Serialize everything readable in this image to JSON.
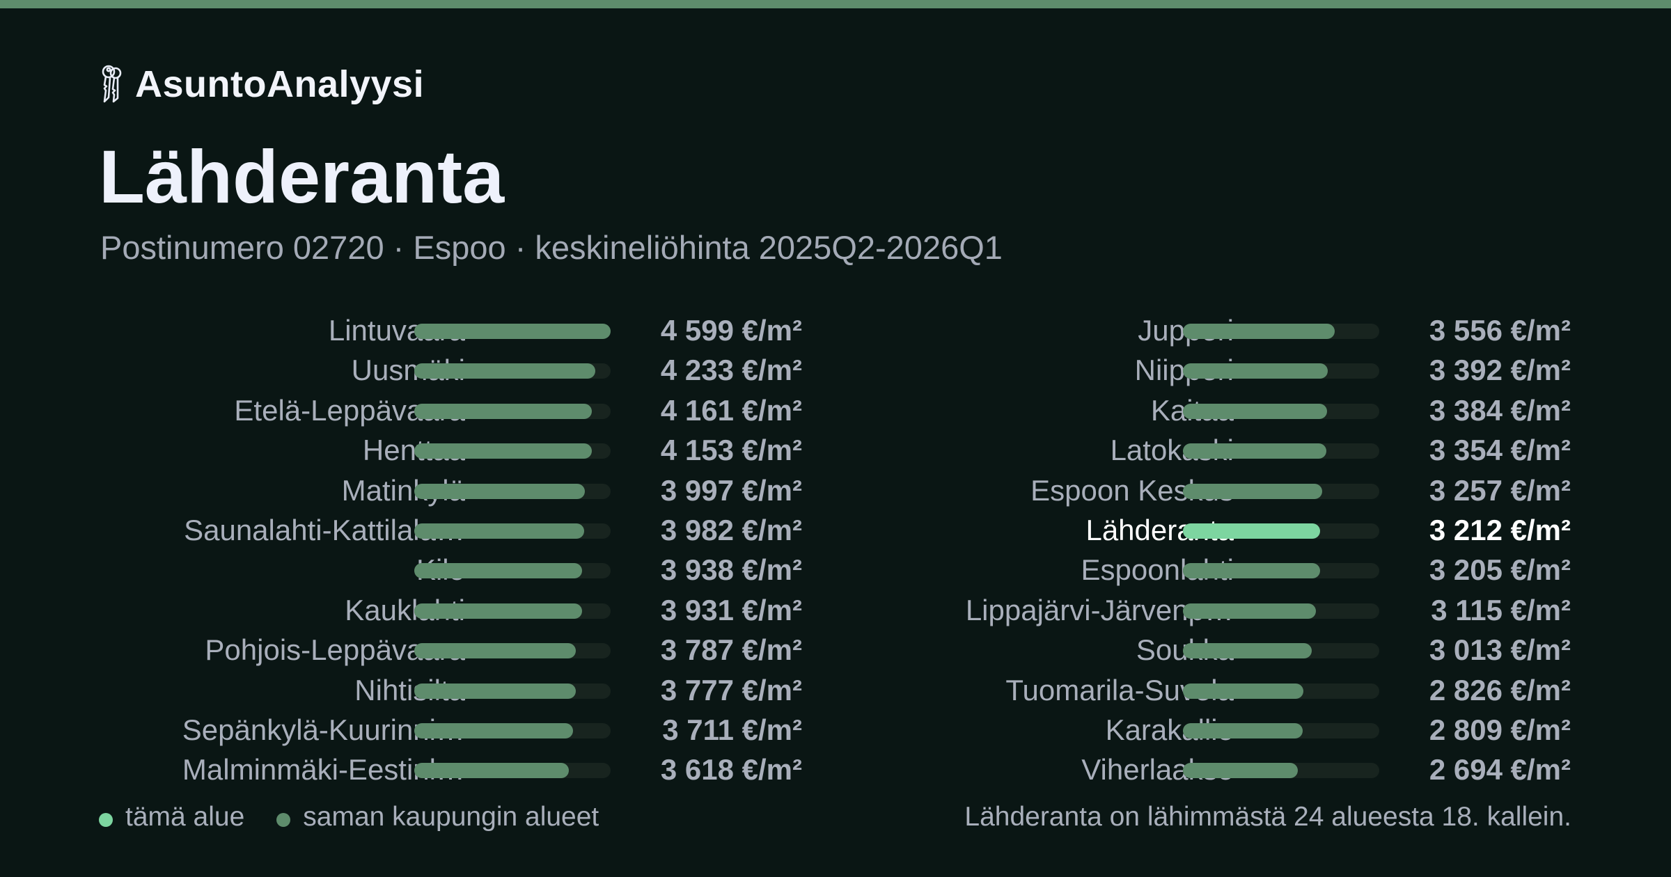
{
  "brand": {
    "name": "AsuntoAnalyysi",
    "icon": "keys-icon"
  },
  "header": {
    "title": "Lähderanta",
    "subtitle": "Postinumero 02720 · Espoo · keskineliöhinta 2025Q2-2026Q1"
  },
  "colors": {
    "accent": "#7dd5a0",
    "bar": "#5e8c6c",
    "track": "#18241f",
    "background": "#0a1614"
  },
  "max_price": 4599,
  "areas_left": [
    {
      "name": "Lintuvaara",
      "price": "4 599 €/m²",
      "value": 4599
    },
    {
      "name": "Uusmäki",
      "price": "4 233 €/m²",
      "value": 4233
    },
    {
      "name": "Etelä-Leppävaara",
      "price": "4 161 €/m²",
      "value": 4161
    },
    {
      "name": "Henttaa",
      "price": "4 153 €/m²",
      "value": 4153
    },
    {
      "name": "Matinkylä",
      "price": "3 997 €/m²",
      "value": 3997
    },
    {
      "name": "Saunalahti-Kattilala…",
      "price": "3 982 €/m²",
      "value": 3982
    },
    {
      "name": "Kilo",
      "price": "3 938 €/m²",
      "value": 3938
    },
    {
      "name": "Kauklahti",
      "price": "3 931 €/m²",
      "value": 3931
    },
    {
      "name": "Pohjois-Leppävaara",
      "price": "3 787 €/m²",
      "value": 3787
    },
    {
      "name": "Nihtisilta",
      "price": "3 777 €/m²",
      "value": 3777
    },
    {
      "name": "Sepänkylä-Kuurinni…",
      "price": "3 711 €/m²",
      "value": 3711
    },
    {
      "name": "Malminmäki-Eestinl…",
      "price": "3 618 €/m²",
      "value": 3618
    }
  ],
  "areas_right": [
    {
      "name": "Jupperi",
      "price": "3 556 €/m²",
      "value": 3556
    },
    {
      "name": "Niipperi",
      "price": "3 392 €/m²",
      "value": 3392
    },
    {
      "name": "Kaitaa",
      "price": "3 384 €/m²",
      "value": 3384
    },
    {
      "name": "Latokaski",
      "price": "3 354 €/m²",
      "value": 3354
    },
    {
      "name": "Espoon Keskus",
      "price": "3 257 €/m²",
      "value": 3257
    },
    {
      "name": "Lähderanta",
      "price": "3 212 €/m²",
      "value": 3212,
      "current": true
    },
    {
      "name": "Espoonlahti",
      "price": "3 205 €/m²",
      "value": 3205
    },
    {
      "name": "Lippajärvi-Järvenp…",
      "price": "3 115 €/m²",
      "value": 3115
    },
    {
      "name": "Soukka",
      "price": "3 013 €/m²",
      "value": 3013
    },
    {
      "name": "Tuomarila-Suvela",
      "price": "2 826 €/m²",
      "value": 2826
    },
    {
      "name": "Karakallio",
      "price": "2 809 €/m²",
      "value": 2809
    },
    {
      "name": "Viherlaakso",
      "price": "2 694 €/m²",
      "value": 2694
    }
  ],
  "legend": {
    "current_label": "tämä alue",
    "others_label": "saman kaupungin alueet"
  },
  "summary": "Lähderanta on lähimmästä 24 alueesta 18. kallein."
}
